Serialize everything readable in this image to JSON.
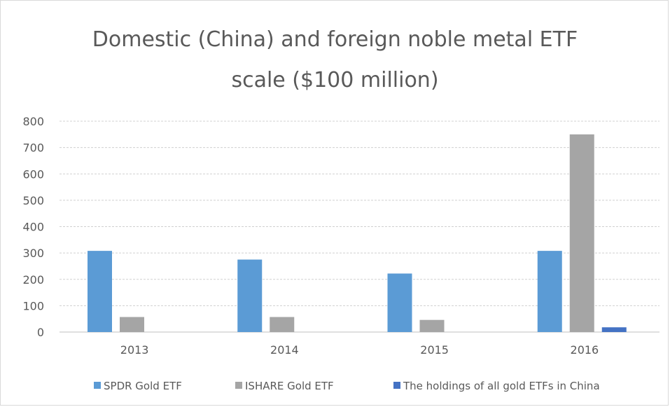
{
  "chart_data": {
    "type": "bar",
    "title": "Domestic (China) and foreign noble metal ETF",
    "subtitle": "scale ($100 million)",
    "xlabel": "",
    "ylabel": "",
    "categories": [
      "2013",
      "2014",
      "2015",
      "2016"
    ],
    "series": [
      {
        "name": "SPDR Gold ETF",
        "color": "#5b9bd5",
        "values": [
          308,
          275,
          222,
          308
        ]
      },
      {
        "name": "ISHARE Gold ETF",
        "color": "#a5a5a5",
        "values": [
          57,
          57,
          46,
          750
        ]
      },
      {
        "name": "The holdings of all gold ETFs in China",
        "color": "#4472c4",
        "values": [
          0,
          0,
          0,
          18
        ]
      }
    ],
    "ylim": [
      0,
      800
    ],
    "yticks": [
      0,
      100,
      200,
      300,
      400,
      500,
      600,
      700,
      800
    ],
    "grid": true,
    "legend_position": "bottom"
  }
}
